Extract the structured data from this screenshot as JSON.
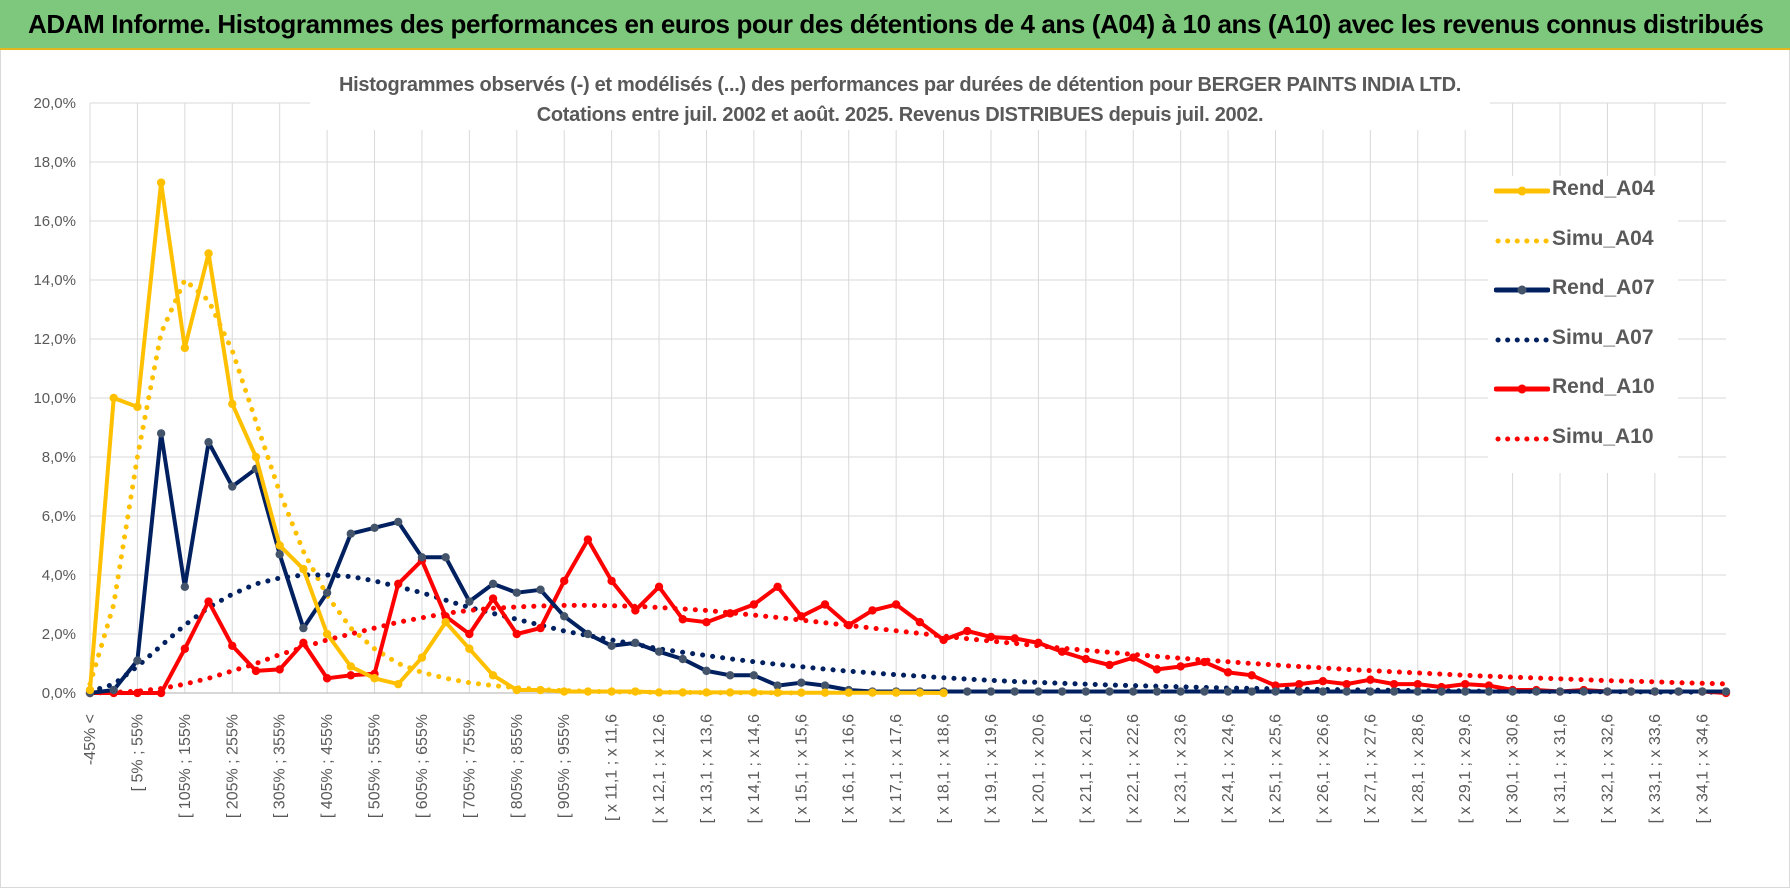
{
  "header": {
    "title": "ADAM Informe. Histogrammes des performances en euros pour des détentions de 4 ans (A04) à 10 ans (A10) avec les revenus connus distribués"
  },
  "chart_data": {
    "type": "line",
    "title": [
      "Histogrammes observés (-) et modélisés (...) des performances par durées de détention pour BERGER PAINTS INDIA LTD.",
      "Cotations entre juil. 2002 et août. 2025. Revenus DISTRIBUES depuis juil. 2002."
    ],
    "xlabel": "",
    "ylabel": "",
    "ylim": [
      0,
      20
    ],
    "y_ticks": [
      "0,0%",
      "2,0%",
      "4,0%",
      "6,0%",
      "8,0%",
      "10,0%",
      "12,0%",
      "14,0%",
      "16,0%",
      "18,0%",
      "20,0%"
    ],
    "grid": true,
    "legend_position": "right",
    "x_tick_labels": [
      "-45% <",
      "[ 5% ; 55%",
      "[ 105% ; 155%",
      "[ 205% ; 255%",
      "[ 305% ; 355%",
      "[ 405% ; 455%",
      "[ 505% ; 555%",
      "[ 605% ; 655%",
      "[ 705% ; 755%",
      "[ 805% ; 855%",
      "[ 905% ; 955%",
      "[ x 11,1 ; x 11,6",
      "[ x 12,1 ; x 12,6",
      "[ x 13,1 ; x 13,6",
      "[ x 14,1 ; x 14,6",
      "[ x 15,1 ; x 15,6",
      "[ x 16,1 ; x 16,6",
      "[ x 17,1 ; x 17,6",
      "[ x 18,1 ; x 18,6",
      "[ x 19,1 ; x 19,6",
      "[ x 20,1 ; x 20,6",
      "[ x 21,1 ; x 21,6",
      "[ x 22,1 ; x 22,6",
      "[ x 23,1 ; x 23,6",
      "[ x 24,1 ; x 24,6",
      "[ x 25,1 ; x 25,6",
      "[ x 26,1 ; x 26,6",
      "[ x 27,1 ; x 27,6",
      "[ x 28,1 ; x 28,6",
      "[ x 29,1 ; x 29,6",
      "[ x 30,1 ; x 30,6",
      "[ x 31,1 ; x 31,6",
      "[ x 32,1 ; x 32,6",
      "[ x 33,1 ; x 33,6",
      "[ x 34,1 ; x 34,6"
    ],
    "series": [
      {
        "name": "Rend_A04",
        "color": "#ffc000",
        "style": "solid",
        "markers": true,
        "values": [
          0.1,
          10.0,
          9.7,
          17.3,
          11.7,
          14.9,
          9.8,
          8.0,
          5.0,
          4.2,
          2.0,
          0.9,
          0.5,
          0.3,
          1.2,
          2.4,
          1.5,
          0.6,
          0.1,
          0.1,
          0.05,
          0.05,
          0.05,
          0.05,
          0.02,
          0.02,
          0.02,
          0.02,
          0.02,
          0.01,
          0.01,
          0.01,
          0.01,
          0.01,
          0.01,
          0.01,
          0.0
        ]
      },
      {
        "name": "Simu_A04",
        "color": "#ffc000",
        "style": "dotted",
        "markers": false,
        "values": [
          0.3,
          3.0,
          8.0,
          12.2,
          14.0,
          13.3,
          11.6,
          9.2,
          6.8,
          4.8,
          3.3,
          2.2,
          1.5,
          1.0,
          0.7,
          0.5,
          0.35,
          0.25,
          0.18,
          0.12,
          0.08,
          0.06,
          0.04,
          0.03,
          0.02,
          0.02,
          0.01,
          0.01,
          0.01,
          0.01,
          0.0
        ]
      },
      {
        "name": "Rend_A07",
        "color": "#002060",
        "style": "solid",
        "markers": true,
        "values": [
          0.0,
          0.1,
          1.1,
          8.8,
          3.6,
          8.5,
          7.0,
          7.6,
          4.7,
          2.2,
          3.4,
          5.4,
          5.6,
          5.8,
          4.6,
          4.6,
          3.1,
          3.7,
          3.4,
          3.5,
          2.6,
          2.0,
          1.6,
          1.7,
          1.4,
          1.15,
          0.75,
          0.6,
          0.6,
          0.25,
          0.35,
          0.25,
          0.1,
          0.05,
          0.05,
          0.05,
          0.05,
          0.05,
          0.05,
          0.05,
          0.05,
          0.05,
          0.05,
          0.05,
          0.05,
          0.05,
          0.05,
          0.05,
          0.05,
          0.05,
          0.05,
          0.05,
          0.05,
          0.05,
          0.05,
          0.05,
          0.05,
          0.05,
          0.05,
          0.05,
          0.05,
          0.05,
          0.05,
          0.05,
          0.05,
          0.05,
          0.05,
          0.05,
          0.05,
          0.05
        ]
      },
      {
        "name": "Simu_A07",
        "color": "#002060",
        "style": "dotted",
        "markers": false,
        "values": [
          0.05,
          0.3,
          0.9,
          1.6,
          2.3,
          2.9,
          3.35,
          3.7,
          3.9,
          4.0,
          4.0,
          3.95,
          3.8,
          3.6,
          3.4,
          3.15,
          2.9,
          2.7,
          2.5,
          2.3,
          2.1,
          1.95,
          1.8,
          1.65,
          1.5,
          1.38,
          1.27,
          1.16,
          1.06,
          0.97,
          0.89,
          0.81,
          0.74,
          0.68,
          0.62,
          0.57,
          0.52,
          0.47,
          0.43,
          0.39,
          0.36,
          0.33,
          0.3,
          0.27,
          0.25,
          0.23,
          0.21,
          0.19,
          0.17,
          0.16,
          0.14,
          0.13,
          0.12,
          0.11,
          0.1,
          0.09,
          0.08,
          0.07,
          0.07,
          0.06,
          0.06,
          0.05,
          0.05,
          0.04,
          0.04,
          0.04,
          0.03,
          0.03,
          0.03,
          0.03
        ]
      },
      {
        "name": "Rend_A10",
        "color": "#ff0000",
        "style": "solid",
        "markers": true,
        "values": [
          0.0,
          0.0,
          0.0,
          0.0,
          1.5,
          3.1,
          1.6,
          0.75,
          0.8,
          1.7,
          0.5,
          0.6,
          0.65,
          3.7,
          4.5,
          2.6,
          2.0,
          3.2,
          2.0,
          2.2,
          3.8,
          5.2,
          3.8,
          2.8,
          3.6,
          2.5,
          2.4,
          2.7,
          3.0,
          3.6,
          2.6,
          3.0,
          2.3,
          2.8,
          3.0,
          2.4,
          1.8,
          2.1,
          1.9,
          1.85,
          1.7,
          1.4,
          1.15,
          0.95,
          1.2,
          0.8,
          0.9,
          1.05,
          0.7,
          0.6,
          0.25,
          0.3,
          0.4,
          0.3,
          0.45,
          0.3,
          0.3,
          0.2,
          0.3,
          0.25,
          0.1,
          0.1,
          0.05,
          0.1,
          0.05,
          0.05,
          0.05,
          0.05,
          0.05,
          0.0
        ]
      },
      {
        "name": "Simu_A10",
        "color": "#ff0000",
        "style": "dotted",
        "markers": false,
        "values": [
          0.0,
          0.02,
          0.06,
          0.15,
          0.3,
          0.5,
          0.75,
          1.0,
          1.3,
          1.55,
          1.8,
          2.0,
          2.2,
          2.4,
          2.55,
          2.7,
          2.8,
          2.87,
          2.92,
          2.95,
          2.97,
          2.97,
          2.96,
          2.94,
          2.9,
          2.85,
          2.8,
          2.72,
          2.64,
          2.56,
          2.47,
          2.38,
          2.29,
          2.2,
          2.11,
          2.02,
          1.93,
          1.84,
          1.76,
          1.68,
          1.6,
          1.52,
          1.45,
          1.38,
          1.31,
          1.24,
          1.18,
          1.12,
          1.06,
          1.0,
          0.95,
          0.9,
          0.85,
          0.8,
          0.76,
          0.72,
          0.68,
          0.64,
          0.6,
          0.57,
          0.54,
          0.51,
          0.48,
          0.45,
          0.42,
          0.4,
          0.38,
          0.35,
          0.33,
          0.31
        ]
      }
    ]
  }
}
